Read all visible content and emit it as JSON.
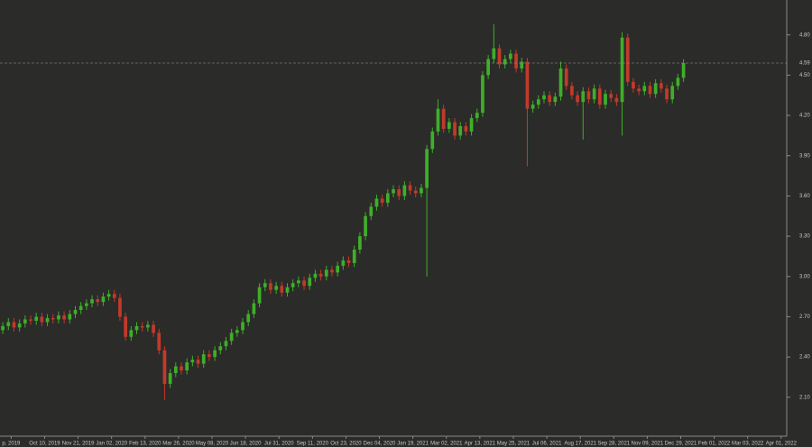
{
  "chart_data": {
    "type": "candlestick",
    "up_color": "#3fae2a",
    "down_color": "#c23a2a",
    "open": [
      2.6,
      2.63,
      2.66,
      2.62,
      2.65,
      2.68,
      2.67,
      2.7,
      2.66,
      2.69,
      2.68,
      2.71,
      2.68,
      2.72,
      2.75,
      2.78,
      2.8,
      2.83,
      2.81,
      2.85,
      2.87,
      2.84,
      2.7,
      2.55,
      2.6,
      2.63,
      2.62,
      2.64,
      2.58,
      2.45,
      2.2,
      2.28,
      2.33,
      2.3,
      2.36,
      2.38,
      2.35,
      2.42,
      2.4,
      2.45,
      2.48,
      2.52,
      2.58,
      2.6,
      2.66,
      2.72,
      2.8,
      2.92,
      2.95,
      2.9,
      2.93,
      2.88,
      2.92,
      2.95,
      2.97,
      2.93,
      2.99,
      3.02,
      3.0,
      3.05,
      3.03,
      3.08,
      3.12,
      3.1,
      3.2,
      3.3,
      3.45,
      3.52,
      3.58,
      3.55,
      3.62,
      3.65,
      3.6,
      3.68,
      3.64,
      3.62,
      3.66,
      3.95,
      4.08,
      4.25,
      4.1,
      4.15,
      4.05,
      4.12,
      4.08,
      4.18,
      4.22,
      4.5,
      4.62,
      4.7,
      4.58,
      4.62,
      4.66,
      4.55,
      4.6,
      4.25,
      4.28,
      4.32,
      4.35,
      4.3,
      4.34,
      4.55,
      4.42,
      4.35,
      4.3,
      4.38,
      4.32,
      4.4,
      4.28,
      4.36,
      4.33,
      4.3,
      4.78,
      4.45,
      4.4,
      4.38,
      4.42,
      4.36,
      4.44,
      4.4,
      4.32,
      4.42,
      4.48
    ],
    "high": [
      2.66,
      2.69,
      2.69,
      2.68,
      2.71,
      2.71,
      2.73,
      2.73,
      2.72,
      2.72,
      2.74,
      2.74,
      2.75,
      2.78,
      2.81,
      2.83,
      2.86,
      2.86,
      2.88,
      2.9,
      2.9,
      2.87,
      2.73,
      2.63,
      2.66,
      2.66,
      2.67,
      2.67,
      2.61,
      2.48,
      2.31,
      2.36,
      2.36,
      2.39,
      2.41,
      2.41,
      2.45,
      2.45,
      2.48,
      2.51,
      2.55,
      2.61,
      2.63,
      2.69,
      2.75,
      2.83,
      2.95,
      2.98,
      2.98,
      2.96,
      2.96,
      2.95,
      2.98,
      3.0,
      3.0,
      3.02,
      3.05,
      3.05,
      3.08,
      3.08,
      3.11,
      3.15,
      3.15,
      3.23,
      3.33,
      3.48,
      3.55,
      3.61,
      3.61,
      3.65,
      3.68,
      3.68,
      3.71,
      3.71,
      3.67,
      3.69,
      3.98,
      4.11,
      4.32,
      4.28,
      4.18,
      4.18,
      4.15,
      4.15,
      4.21,
      4.25,
      4.53,
      4.65,
      4.88,
      4.73,
      4.65,
      4.69,
      4.69,
      4.63,
      4.63,
      4.31,
      4.35,
      4.38,
      4.38,
      4.37,
      4.6,
      4.58,
      4.45,
      4.38,
      4.41,
      4.41,
      4.43,
      4.43,
      4.39,
      4.39,
      4.36,
      4.82,
      4.81,
      4.48,
      4.43,
      4.45,
      4.45,
      4.47,
      4.47,
      4.43,
      4.45,
      4.51,
      4.62
    ],
    "low": [
      2.57,
      2.6,
      2.59,
      2.59,
      2.62,
      2.64,
      2.64,
      2.63,
      2.63,
      2.65,
      2.65,
      2.65,
      2.65,
      2.69,
      2.72,
      2.75,
      2.77,
      2.78,
      2.78,
      2.82,
      2.81,
      2.67,
      2.52,
      2.52,
      2.57,
      2.59,
      2.59,
      2.55,
      2.42,
      2.08,
      2.17,
      2.25,
      2.27,
      2.27,
      2.33,
      2.32,
      2.32,
      2.37,
      2.37,
      2.42,
      2.45,
      2.49,
      2.55,
      2.57,
      2.63,
      2.69,
      2.77,
      2.89,
      2.87,
      2.87,
      2.85,
      2.85,
      2.89,
      2.92,
      2.9,
      2.9,
      2.96,
      2.97,
      2.97,
      3.0,
      3.0,
      3.05,
      3.07,
      3.07,
      3.17,
      3.27,
      3.42,
      3.49,
      3.52,
      3.52,
      3.59,
      3.57,
      3.57,
      3.61,
      3.59,
      3.59,
      3.0,
      3.92,
      4.05,
      4.07,
      4.07,
      4.02,
      4.02,
      4.05,
      4.05,
      4.15,
      4.19,
      4.47,
      4.59,
      4.55,
      4.55,
      4.59,
      4.52,
      4.52,
      3.82,
      4.22,
      4.25,
      4.29,
      4.27,
      4.27,
      4.31,
      4.39,
      4.32,
      4.27,
      4.02,
      4.29,
      4.29,
      4.25,
      4.25,
      4.3,
      4.27,
      4.05,
      4.42,
      4.37,
      4.35,
      4.35,
      4.33,
      4.33,
      4.37,
      4.29,
      4.29,
      4.39,
      4.45
    ],
    "close": [
      2.63,
      2.66,
      2.62,
      2.65,
      2.68,
      2.67,
      2.7,
      2.66,
      2.69,
      2.68,
      2.71,
      2.68,
      2.72,
      2.75,
      2.78,
      2.8,
      2.83,
      2.81,
      2.85,
      2.87,
      2.84,
      2.7,
      2.55,
      2.6,
      2.63,
      2.62,
      2.64,
      2.58,
      2.45,
      2.2,
      2.28,
      2.33,
      2.3,
      2.36,
      2.38,
      2.35,
      2.42,
      2.4,
      2.45,
      2.48,
      2.52,
      2.58,
      2.6,
      2.66,
      2.72,
      2.8,
      2.92,
      2.95,
      2.9,
      2.93,
      2.88,
      2.92,
      2.95,
      2.97,
      2.93,
      2.99,
      3.02,
      3.0,
      3.05,
      3.03,
      3.08,
      3.12,
      3.1,
      3.2,
      3.3,
      3.45,
      3.52,
      3.58,
      3.55,
      3.62,
      3.65,
      3.6,
      3.68,
      3.64,
      3.62,
      3.66,
      3.95,
      4.08,
      4.25,
      4.1,
      4.15,
      4.05,
      4.12,
      4.08,
      4.18,
      4.22,
      4.5,
      4.62,
      4.7,
      4.58,
      4.62,
      4.66,
      4.55,
      4.6,
      4.25,
      4.28,
      4.32,
      4.35,
      4.3,
      4.34,
      4.55,
      4.42,
      4.35,
      4.3,
      4.38,
      4.32,
      4.4,
      4.28,
      4.36,
      4.33,
      4.3,
      4.78,
      4.45,
      4.4,
      4.38,
      4.42,
      4.36,
      4.44,
      4.4,
      4.32,
      4.42,
      4.48,
      4.59
    ],
    "xlim": [
      0,
      141
    ],
    "xticks": [
      {
        "value": 2,
        "label": "p, 2019"
      },
      {
        "value": 8,
        "label": "Oct 10, 2019"
      },
      {
        "value": 14,
        "label": "Nov 21, 2019"
      },
      {
        "value": 20,
        "label": "Jan 02, 2020"
      },
      {
        "value": 26,
        "label": "Feb 13, 2020"
      },
      {
        "value": 32,
        "label": "Mar 26, 2020"
      },
      {
        "value": 38,
        "label": "May 08, 2020"
      },
      {
        "value": 44,
        "label": "Jun 18, 2020"
      },
      {
        "value": 50,
        "label": "Jul 31, 2020"
      },
      {
        "value": 56,
        "label": "Sep 11, 2020"
      },
      {
        "value": 62,
        "label": "Oct 23, 2020"
      },
      {
        "value": 68,
        "label": "Dec 04, 2020"
      },
      {
        "value": 74,
        "label": "Jan 19, 2021"
      },
      {
        "value": 80,
        "label": "Mar 02, 2021"
      },
      {
        "value": 86,
        "label": "Apr 13, 2021"
      },
      {
        "value": 92,
        "label": "May 25, 2021"
      },
      {
        "value": 98,
        "label": "Jul 06, 2021"
      },
      {
        "value": 104,
        "label": "Aug 17, 2021"
      },
      {
        "value": 110,
        "label": "Sep 28, 2021"
      },
      {
        "value": 116,
        "label": "Nov 09, 2021"
      },
      {
        "value": 122,
        "label": "Dec 29, 2021"
      },
      {
        "value": 128,
        "label": "Feb 01, 2022"
      },
      {
        "value": 134,
        "label": "Mar 03, 2022"
      },
      {
        "value": 140,
        "label": "Apr 01, 2022"
      }
    ],
    "ylim": [
      1.81,
      5.06
    ],
    "yticks": [
      {
        "value": 2.1,
        "label": "2.10"
      },
      {
        "value": 2.4,
        "label": "2.40"
      },
      {
        "value": 2.7,
        "label": "2.70"
      },
      {
        "value": 3.0,
        "label": "3.00"
      },
      {
        "value": 3.3,
        "label": "3.30"
      },
      {
        "value": 3.6,
        "label": "3.60"
      },
      {
        "value": 3.9,
        "label": "3.90"
      },
      {
        "value": 4.2,
        "label": "4.20"
      },
      {
        "value": 4.5,
        "label": "4.50"
      },
      {
        "value": 4.8,
        "label": "4.80"
      }
    ],
    "last_price": 4.59
  }
}
